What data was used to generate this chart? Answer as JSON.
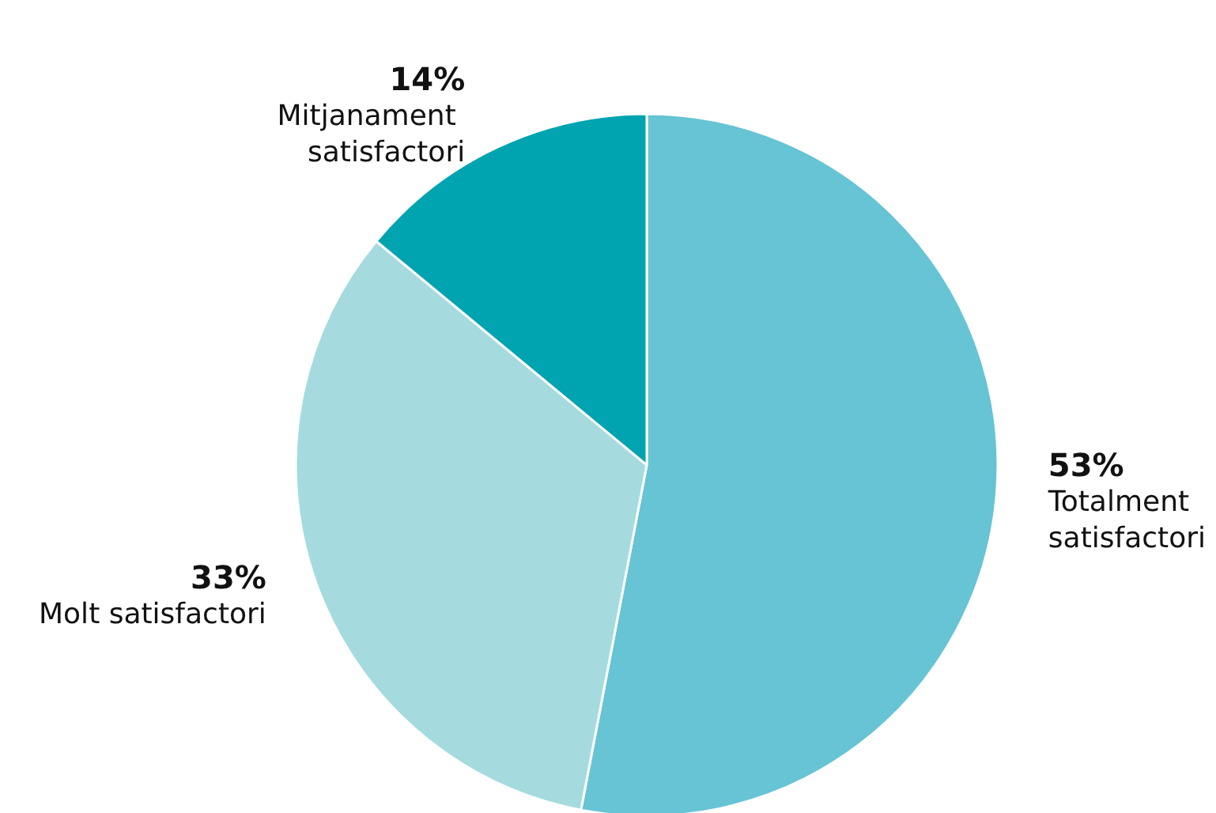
{
  "chart_data": {
    "type": "pie",
    "categories": [
      "Totalment satisfactori",
      "Molt satisfactori",
      "Mitjanament satisfactori"
    ],
    "values": [
      53,
      33,
      14
    ],
    "value_labels": [
      "53%",
      "33%",
      "14%"
    ],
    "colors": [
      "#66c4d4",
      "#a5dbdf",
      "#00a3b0"
    ],
    "legend": false
  }
}
